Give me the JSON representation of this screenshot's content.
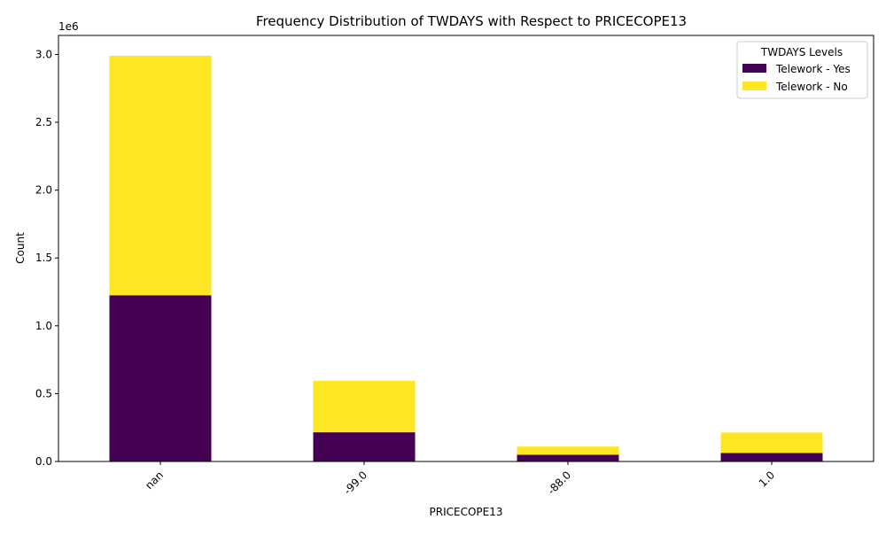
{
  "chart_data": {
    "type": "bar",
    "stacked": true,
    "title": "Frequency Distribution of TWDAYS with Respect to PRICECOPE13",
    "xlabel": "PRICECOPE13",
    "ylabel": "Count",
    "y_offset_label": "1e6",
    "y_scale": 1000000,
    "ylim": [
      0,
      3140000
    ],
    "yticks": [
      0.0,
      0.5,
      1.0,
      1.5,
      2.0,
      2.5,
      3.0
    ],
    "ytick_labels": [
      "0.0",
      "0.5",
      "1.0",
      "1.5",
      "2.0",
      "2.5",
      "3.0"
    ],
    "categories": [
      "nan",
      "-99.0",
      "-88.0",
      "1.0"
    ],
    "series": [
      {
        "name": "Telework - Yes",
        "color": "#440154",
        "values": [
          1225000,
          215000,
          50000,
          63000
        ]
      },
      {
        "name": "Telework - No",
        "color": "#fde725",
        "values": [
          1765000,
          380000,
          60000,
          150000
        ]
      }
    ],
    "legend": {
      "title": "TWDAYS Levels",
      "position": "top-right"
    },
    "grid": false,
    "xtick_rotation": 45
  }
}
